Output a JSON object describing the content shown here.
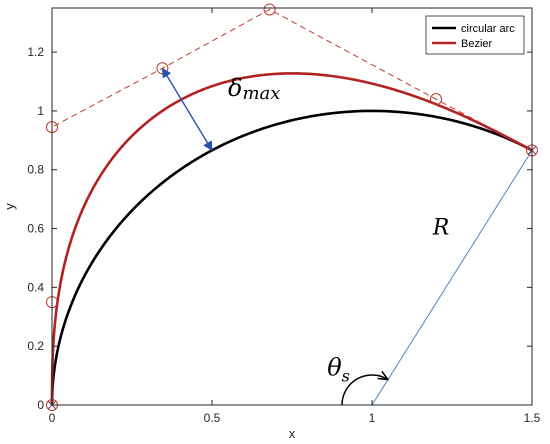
{
  "chart_data": {
    "type": "line",
    "xlabel": "x",
    "ylabel": "y",
    "xlim": [
      0,
      1.5
    ],
    "ylim": [
      0,
      1.35
    ],
    "xticks": [
      0,
      0.5,
      1,
      1.5
    ],
    "xtick_labels": [
      "0",
      "0.5",
      "1",
      "1.5"
    ],
    "yticks": [
      0,
      0.2,
      0.4,
      0.6,
      0.8,
      1,
      1.2
    ],
    "ytick_labels": [
      "0",
      "0.2",
      "0.4",
      "0.6",
      "0.8",
      "1",
      "1.2"
    ],
    "grid": false,
    "legend_position": "top-right",
    "series": [
      {
        "name": "circular arc",
        "color": "#000000",
        "style": "solid",
        "arc": {
          "center": [
            1,
            0
          ],
          "radius": 1,
          "start_deg": 180,
          "end_deg": 60
        }
      },
      {
        "name": "Bezier",
        "color": "#b22222",
        "style": "solid",
        "control_points": [
          [
            0,
            0
          ],
          [
            0,
            0.35
          ],
          [
            0,
            0.945
          ],
          [
            0.345,
            1.145
          ],
          [
            0.68,
            1.345
          ],
          [
            1.2,
            1.04
          ],
          [
            1.5,
            0.866
          ]
        ]
      }
    ],
    "control_polygon": {
      "color": "#c0392b",
      "style": "dashed",
      "points": [
        [
          0,
          0
        ],
        [
          0,
          0.35
        ],
        [
          0,
          0.945
        ],
        [
          0.345,
          1.145
        ],
        [
          0.68,
          1.345
        ],
        [
          1.2,
          1.04
        ],
        [
          1.5,
          0.866
        ]
      ]
    },
    "radius_line": {
      "color": "#4a86c5",
      "from": [
        1,
        0
      ],
      "to": [
        1.5,
        0.866
      ]
    },
    "delta_arrow": {
      "color": "#2255aa",
      "from": [
        0.345,
        1.145
      ],
      "to": [
        0.5,
        0.866
      ]
    },
    "theta_arc": {
      "center": [
        1,
        0
      ],
      "from_deg": 180,
      "to_deg": 60
    },
    "annotations": [
      {
        "id": "delta",
        "symbol": "δ",
        "subscript": "max",
        "x": 0.55,
        "y": 1.05
      },
      {
        "id": "radius",
        "symbol": "R",
        "x": 1.19,
        "y": 0.58
      },
      {
        "id": "theta",
        "symbol": "θ",
        "subscript": "s",
        "x": 0.86,
        "y": 0.1
      }
    ]
  }
}
